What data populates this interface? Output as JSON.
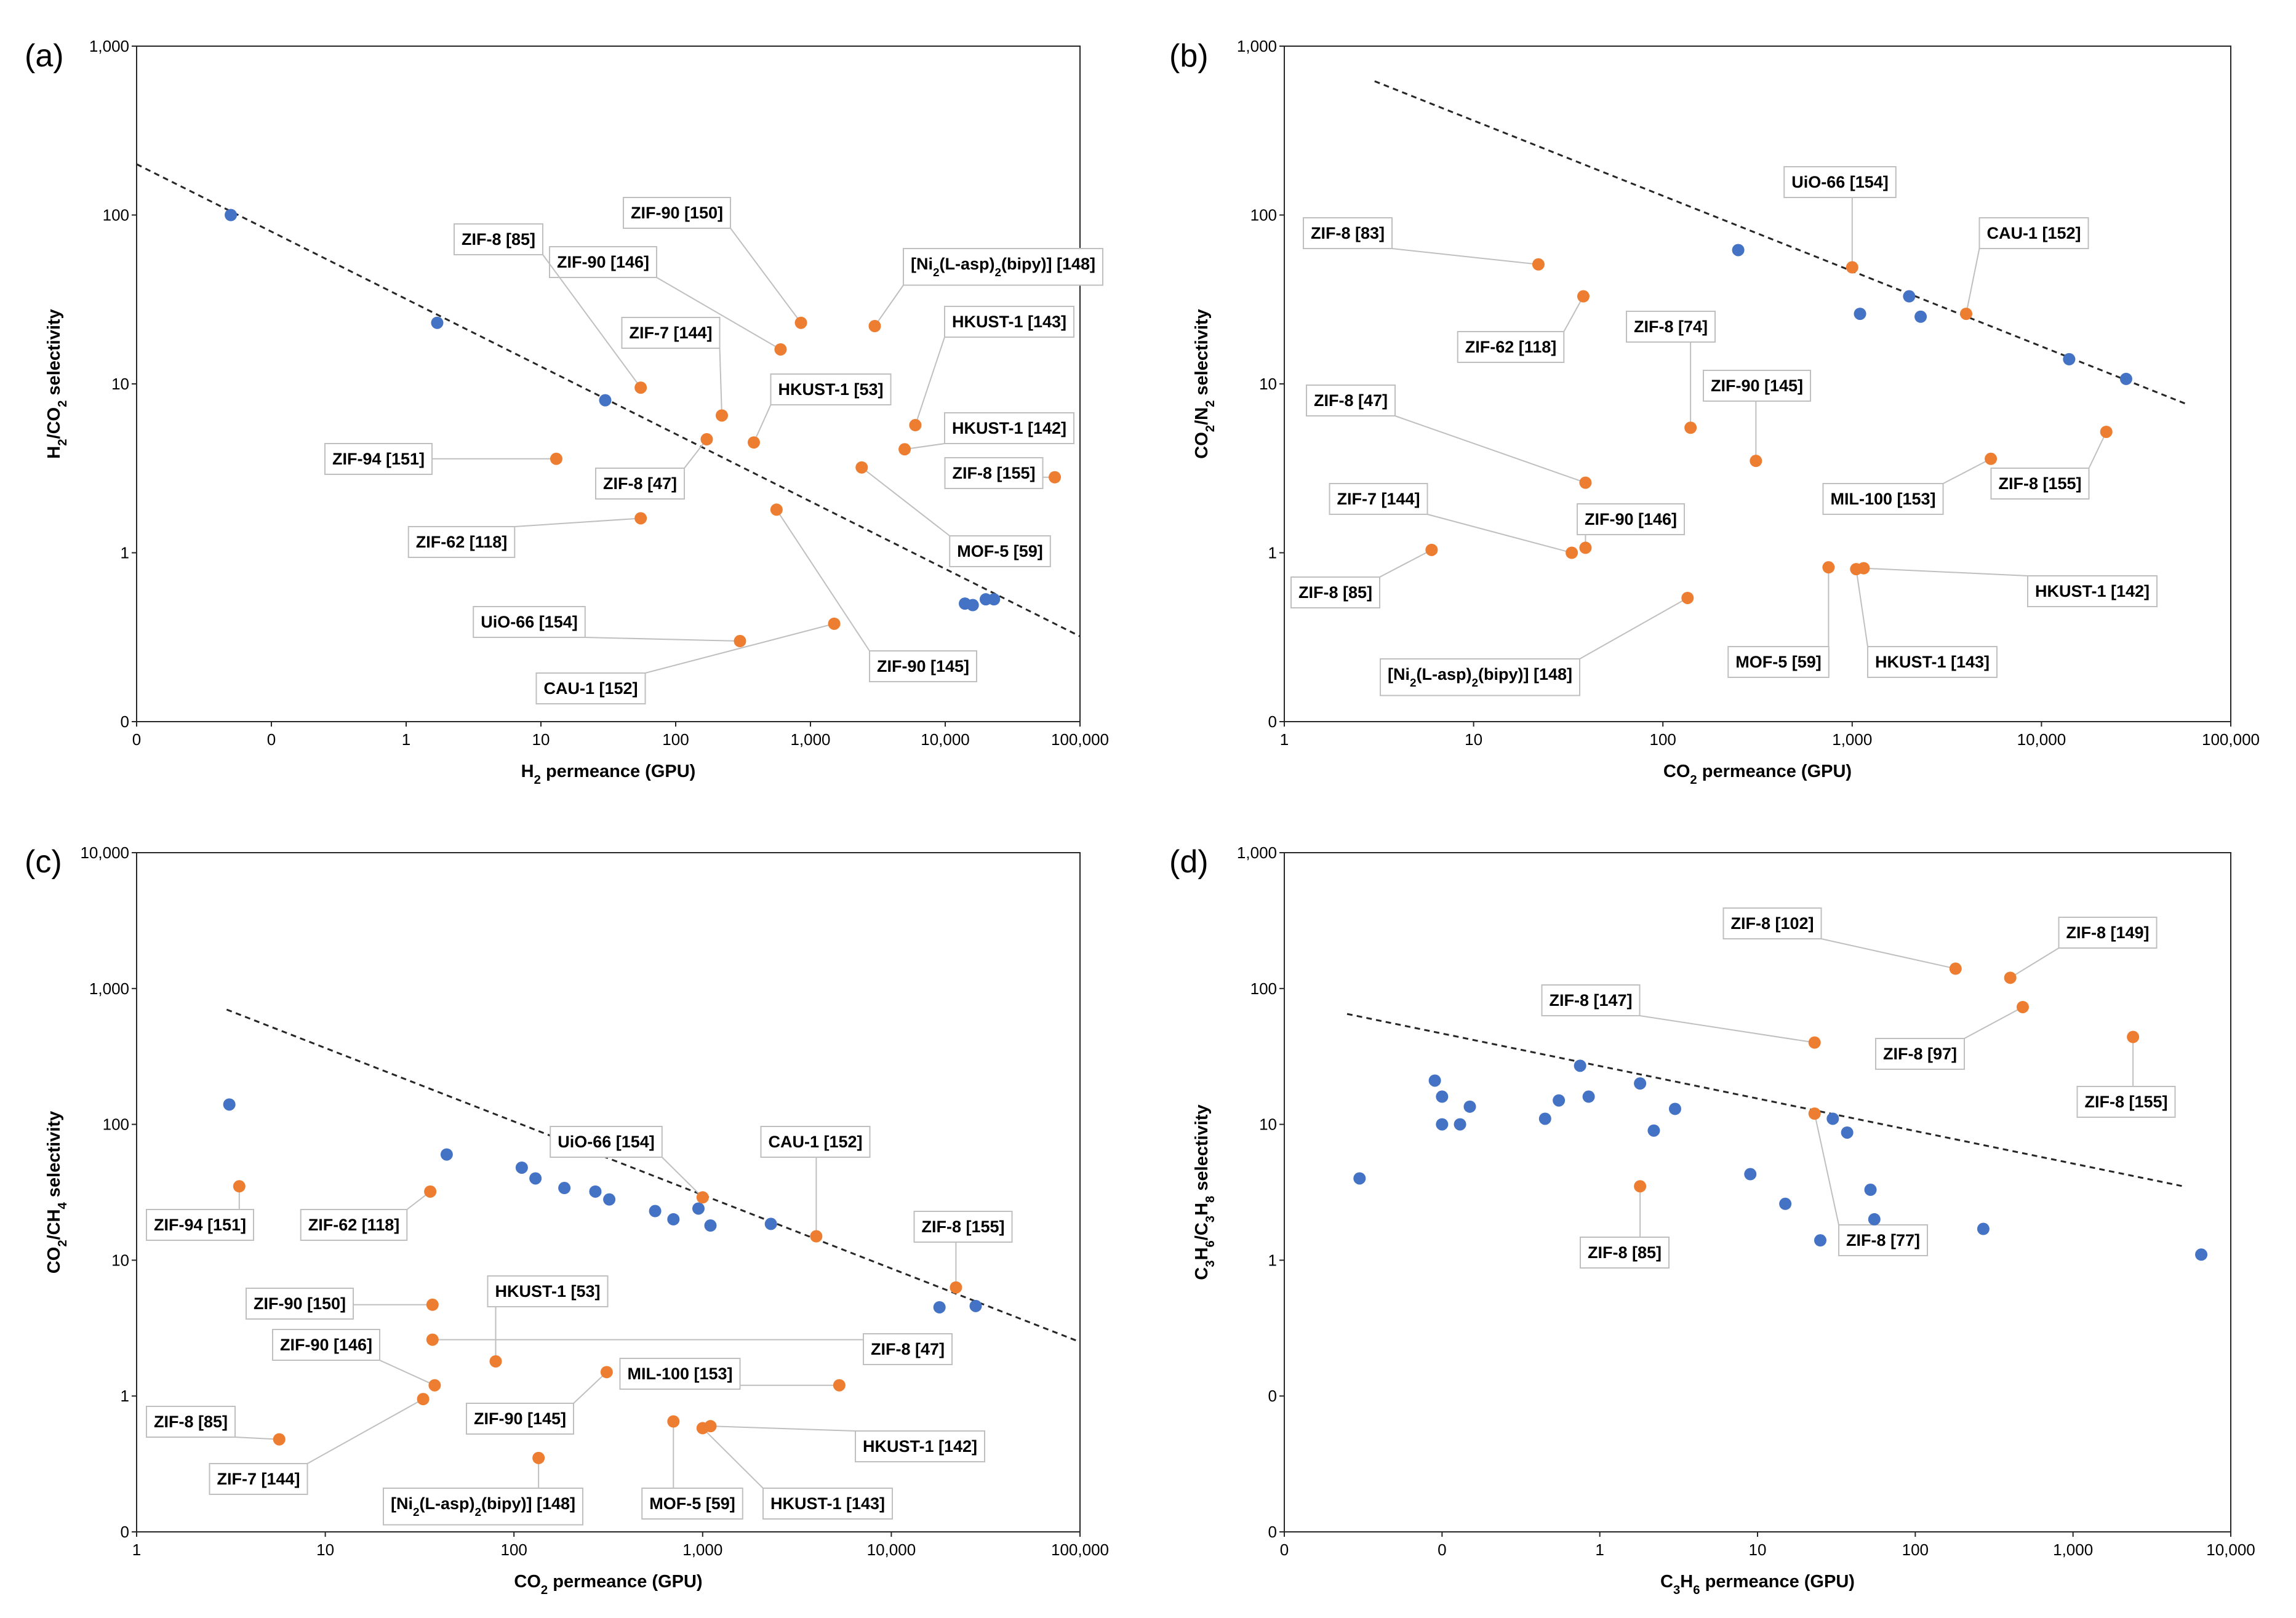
{
  "colors": {
    "blue": "#4472C4",
    "orange": "#ED7D31",
    "axis": "#262626",
    "leader": "#BFBFBF"
  },
  "chart_data": [
    {
      "panel": "(a)",
      "type": "scatter",
      "xlabel_main": "H",
      "xlabel_sub": "2",
      "xlabel_tail": " permeance (GPU)",
      "ylabel_main": "H",
      "ylabel_sub": "2",
      "ylabel_mid": "/CO",
      "ylabel_sub2": "2",
      "ylabel_tail": " selectivity",
      "xscale": "log",
      "xlim": [
        0.01,
        100000
      ],
      "x_ticks": [
        0.01,
        0.1,
        1,
        10,
        100,
        1000,
        10000,
        100000
      ],
      "x_tick_labels": [
        "0",
        "0",
        "1",
        "10",
        "100",
        "1,000",
        "10,000",
        "100,000"
      ],
      "yscale": "log",
      "ylim": [
        0.1,
        1000
      ],
      "y_ticks": [
        0.1,
        1,
        10,
        100,
        1000
      ],
      "y_tick_labels": [
        "0",
        "1",
        "10",
        "100",
        "1,000"
      ],
      "trendline": [
        [
          0.01,
          200
        ],
        [
          100000,
          0.32
        ]
      ],
      "series": [
        {
          "name": "blue",
          "color": "blue",
          "points": [
            [
              0.05,
              100
            ],
            [
              1.7,
              23
            ],
            [
              30,
              8
            ],
            [
              14000,
              0.5
            ],
            [
              16000,
              0.49
            ],
            [
              20000,
              0.53
            ],
            [
              23000,
              0.53
            ]
          ]
        },
        {
          "name": "orange",
          "color": "orange",
          "points": [
            [
              850,
              23
            ],
            [
              3000,
              22
            ],
            [
              600,
              16
            ],
            [
              55,
              9.5
            ],
            [
              220,
              6.5
            ],
            [
              6000,
              5.7
            ],
            [
              5000,
              4.1
            ],
            [
              380,
              4.5
            ],
            [
              170,
              4.7
            ],
            [
              13,
              3.6
            ],
            [
              2400,
              3.2
            ],
            [
              65000,
              2.8
            ],
            [
              55,
              1.6
            ],
            [
              560,
              1.8
            ],
            [
              1500,
              0.38
            ],
            [
              300,
              0.3
            ]
          ]
        }
      ],
      "annotations": [
        {
          "text": "ZIF-90 [150]",
          "target": [
            850,
            23
          ]
        },
        {
          "text": "ZIF-90 [146]",
          "target": [
            600,
            16
          ]
        },
        {
          "text": "ZIF-8 [85]",
          "target": [
            55,
            9.5
          ]
        },
        {
          "text": "ZIF-7 [144]",
          "target": [
            220,
            6.5
          ]
        },
        {
          "pre": "[Ni",
          "sub": "2",
          "post": "(L-asp)",
          "sub2": "2",
          "post2": "(bipy)] [148]",
          "target": [
            3000,
            22
          ]
        },
        {
          "text": "HKUST-1 [143]",
          "target": [
            6000,
            5.7
          ]
        },
        {
          "text": "HKUST-1 [53]",
          "target": [
            380,
            4.5
          ]
        },
        {
          "text": "HKUST-1 [142]",
          "target": [
            5000,
            4.1
          ]
        },
        {
          "text": "ZIF-94 [151]",
          "target": [
            13,
            3.6
          ]
        },
        {
          "text": "ZIF-8 [47]",
          "target": [
            170,
            4.7
          ]
        },
        {
          "text": "ZIF-8 [155]",
          "target": [
            65000,
            2.8
          ]
        },
        {
          "text": "ZIF-62 [118]",
          "target": [
            55,
            1.6
          ]
        },
        {
          "text": "MOF-5 [59]",
          "target": [
            2400,
            3.2
          ]
        },
        {
          "text": "UiO-66 [154]",
          "target": [
            300,
            0.3
          ]
        },
        {
          "text": "CAU-1 [152]",
          "target": [
            1500,
            0.38
          ]
        },
        {
          "text": "ZIF-90 [145]",
          "target": [
            560,
            1.8
          ]
        }
      ]
    },
    {
      "panel": "(b)",
      "type": "scatter",
      "xlabel_main": "CO",
      "xlabel_sub": "2",
      "xlabel_tail": " permeance (GPU)",
      "ylabel_main": "CO",
      "ylabel_sub": "2",
      "ylabel_mid": "/N",
      "ylabel_sub2": "2",
      "ylabel_tail": " selectivity",
      "xscale": "log",
      "xlim": [
        1,
        100000
      ],
      "x_ticks": [
        1,
        10,
        100,
        1000,
        10000,
        100000
      ],
      "x_tick_labels": [
        "1",
        "10",
        "100",
        "1,000",
        "10,000",
        "100,000"
      ],
      "yscale": "log",
      "ylim": [
        0.1,
        1000
      ],
      "y_ticks": [
        0.1,
        1,
        10,
        100,
        1000
      ],
      "y_tick_labels": [
        "0",
        "1",
        "10",
        "100",
        "1,000"
      ],
      "trendline": [
        [
          3,
          620
        ],
        [
          60000,
          7.5
        ]
      ],
      "series": [
        {
          "name": "blue",
          "color": "blue",
          "points": [
            [
              250,
              62
            ],
            [
              1100,
              26
            ],
            [
              2000,
              33
            ],
            [
              2300,
              25
            ],
            [
              14000,
              14
            ],
            [
              28000,
              10.7
            ]
          ]
        },
        {
          "name": "orange",
          "color": "orange",
          "points": [
            [
              22,
              51
            ],
            [
              38,
              33
            ],
            [
              1000,
              49
            ],
            [
              4000,
              26
            ],
            [
              140,
              5.5
            ],
            [
              310,
              3.5
            ],
            [
              39,
              2.6
            ],
            [
              5400,
              3.6
            ],
            [
              22000,
              5.2
            ],
            [
              33,
              1
            ],
            [
              39,
              1.07
            ],
            [
              6,
              1.04
            ],
            [
              135,
              0.54
            ],
            [
              750,
              0.82
            ],
            [
              1050,
              0.8
            ],
            [
              1150,
              0.81
            ]
          ]
        }
      ],
      "annotations": [
        {
          "text": "ZIF-8 [83]",
          "target": [
            22,
            51
          ]
        },
        {
          "text": "UiO-66 [154]",
          "target": [
            1000,
            49
          ]
        },
        {
          "text": "CAU-1 [152]",
          "target": [
            4000,
            26
          ]
        },
        {
          "text": "ZIF-62 [118]",
          "target": [
            38,
            33
          ]
        },
        {
          "text": "ZIF-8 [74]",
          "target": [
            140,
            5.5
          ]
        },
        {
          "text": "ZIF-90 [145]",
          "target": [
            310,
            3.5
          ]
        },
        {
          "text": "ZIF-8 [47]",
          "target": [
            39,
            2.6
          ]
        },
        {
          "text": "ZIF-7 [144]",
          "target": [
            33,
            1
          ]
        },
        {
          "text": "ZIF-90 [146]",
          "target": [
            39,
            1.07
          ]
        },
        {
          "text": "MIL-100 [153]",
          "target": [
            5400,
            3.6
          ]
        },
        {
          "text": "ZIF-8 [155]",
          "target": [
            22000,
            5.2
          ]
        },
        {
          "text": "ZIF-8 [85]",
          "target": [
            6,
            1.04
          ]
        },
        {
          "text": "HKUST-1 [142]",
          "target": [
            1150,
            0.81
          ]
        },
        {
          "pre": "[Ni",
          "sub": "2",
          "post": "(L-asp)",
          "sub2": "2",
          "post2": "(bipy)] [148]",
          "target": [
            135,
            0.54
          ]
        },
        {
          "text": "MOF-5 [59]",
          "target": [
            750,
            0.82
          ]
        },
        {
          "text": "HKUST-1 [143]",
          "target": [
            1050,
            0.8
          ]
        }
      ]
    },
    {
      "panel": "(c)",
      "type": "scatter",
      "xlabel_main": "CO",
      "xlabel_sub": "2",
      "xlabel_tail": " permeance (GPU)",
      "ylabel_main": "CO",
      "ylabel_sub": "2",
      "ylabel_mid": "/CH",
      "ylabel_sub2": "4",
      "ylabel_tail": " selectivity",
      "xscale": "log",
      "xlim": [
        1,
        100000
      ],
      "x_ticks": [
        1,
        10,
        100,
        1000,
        10000,
        100000
      ],
      "x_tick_labels": [
        "1",
        "10",
        "100",
        "1,000",
        "10,000",
        "100,000"
      ],
      "yscale": "log",
      "ylim": [
        0.1,
        10000
      ],
      "y_ticks": [
        0.1,
        1,
        10,
        100,
        1000,
        10000
      ],
      "y_tick_labels": [
        "0",
        "1",
        "10",
        "100",
        "1,000",
        "10,000"
      ],
      "trendline": [
        [
          3,
          700
        ],
        [
          100000,
          2.5
        ]
      ],
      "series": [
        {
          "name": "blue",
          "color": "blue",
          "points": [
            [
              3.1,
              140
            ],
            [
              44,
              60
            ],
            [
              110,
              48
            ],
            [
              130,
              40
            ],
            [
              185,
              34
            ],
            [
              270,
              32
            ],
            [
              320,
              28
            ],
            [
              560,
              23
            ],
            [
              700,
              20
            ],
            [
              950,
              24
            ],
            [
              1100,
              18
            ],
            [
              2300,
              18.5
            ],
            [
              18000,
              4.5
            ],
            [
              28000,
              4.6
            ]
          ]
        },
        {
          "name": "orange",
          "color": "orange",
          "points": [
            [
              3.5,
              35
            ],
            [
              36,
              32
            ],
            [
              1000,
              29
            ],
            [
              4000,
              15
            ],
            [
              22000,
              6.3
            ],
            [
              37,
              4.7
            ],
            [
              37,
              2.6
            ],
            [
              80,
              1.8
            ],
            [
              310,
              1.5
            ],
            [
              38,
              1.2
            ],
            [
              33,
              0.95
            ],
            [
              5.7,
              0.48
            ],
            [
              5300,
              1.2
            ],
            [
              700,
              0.65
            ],
            [
              1000,
              0.58
            ],
            [
              1100,
              0.6
            ],
            [
              135,
              0.35
            ]
          ]
        }
      ],
      "annotations": [
        {
          "text": "UiO-66 [154]",
          "target": [
            1000,
            29
          ]
        },
        {
          "text": "CAU-1 [152]",
          "target": [
            4000,
            15
          ]
        },
        {
          "text": "ZIF-8 [155]",
          "target": [
            22000,
            6.3
          ]
        },
        {
          "text": "ZIF-94 [151]",
          "target": [
            3.5,
            35
          ]
        },
        {
          "text": "ZIF-62 [118]",
          "target": [
            36,
            32
          ]
        },
        {
          "text": "ZIF-90 [150]",
          "target": [
            37,
            4.7
          ]
        },
        {
          "text": "HKUST-1 [53]",
          "target": [
            80,
            1.8
          ]
        },
        {
          "text": "ZIF-8 [47]",
          "target": [
            37,
            2.6
          ]
        },
        {
          "text": "MIL-100 [153]",
          "target": [
            5300,
            1.2
          ]
        },
        {
          "text": "ZIF-90 [145]",
          "target": [
            310,
            1.5
          ]
        },
        {
          "text": "ZIF-90 [146]",
          "target": [
            38,
            1.2
          ]
        },
        {
          "text": "ZIF-8 [85]",
          "target": [
            5.7,
            0.48
          ]
        },
        {
          "text": "HKUST-1 [142]",
          "target": [
            1100,
            0.6
          ]
        },
        {
          "text": "ZIF-7 [144]",
          "target": [
            33,
            0.95
          ]
        },
        {
          "pre": "[Ni",
          "sub": "2",
          "post": "(L-asp)",
          "sub2": "2",
          "post2": "(bipy)] [148]",
          "target": [
            135,
            0.35
          ]
        },
        {
          "text": "MOF-5 [59]",
          "target": [
            700,
            0.65
          ]
        },
        {
          "text": "HKUST-1 [143]",
          "target": [
            1000,
            0.58
          ]
        }
      ]
    },
    {
      "panel": "(d)",
      "type": "scatter",
      "xlabel_main": "C",
      "xlabel_sub": "3",
      "xlabel_mid": "H",
      "xlabel_sub2": "6",
      "xlabel_tail": " permeance (GPU)",
      "ylabel_main": "C",
      "ylabel_sub": "3",
      "ylabel_mid": "H",
      "ylabel_sub2": "6",
      "ylabel_mid2": "/C",
      "ylabel_sub3": "3",
      "ylabel_mid3": "H",
      "ylabel_sub4": "8",
      "ylabel_tail": " selectivity",
      "xscale": "log",
      "xlim": [
        0.01,
        10000
      ],
      "x_ticks": [
        0.01,
        0.1,
        1,
        10,
        100,
        1000,
        10000
      ],
      "x_tick_labels": [
        "0",
        "0",
        "1",
        "10",
        "100",
        "1,000",
        "10,000"
      ],
      "yscale": "log",
      "ylim": [
        0.01,
        1000
      ],
      "y_ticks": [
        0.01,
        0.1,
        1,
        10,
        100,
        1000
      ],
      "y_tick_labels": [
        "0",
        "0",
        "1",
        "10",
        "100",
        "1,000"
      ],
      "trendline": [
        [
          0.025,
          65
        ],
        [
          5000,
          3.5
        ]
      ],
      "series": [
        {
          "name": "blue",
          "color": "blue",
          "points": [
            [
              0.03,
              4
            ],
            [
              0.09,
              21
            ],
            [
              0.1,
              16
            ],
            [
              0.1,
              10
            ],
            [
              0.13,
              10
            ],
            [
              0.15,
              13.5
            ],
            [
              0.45,
              11
            ],
            [
              0.55,
              15
            ],
            [
              0.75,
              27
            ],
            [
              0.85,
              16
            ],
            [
              1.8,
              20
            ],
            [
              2.2,
              9
            ],
            [
              3,
              13
            ],
            [
              9,
              4.3
            ],
            [
              15,
              2.6
            ],
            [
              25,
              1.4
            ],
            [
              30,
              11
            ],
            [
              37,
              8.7
            ],
            [
              52,
              3.3
            ],
            [
              55,
              2
            ],
            [
              270,
              1.7
            ],
            [
              6500,
              1.1
            ]
          ]
        },
        {
          "name": "orange",
          "color": "orange",
          "points": [
            [
              180,
              140
            ],
            [
              400,
              120
            ],
            [
              480,
              73
            ],
            [
              23,
              40
            ],
            [
              2400,
              44
            ],
            [
              23,
              12
            ],
            [
              1.8,
              3.5
            ]
          ]
        }
      ],
      "annotations": [
        {
          "text": "ZIF-8 [102]",
          "target": [
            180,
            140
          ]
        },
        {
          "text": "ZIF-8 [149]",
          "target": [
            400,
            120
          ]
        },
        {
          "text": "ZIF-8 [147]",
          "target": [
            23,
            40
          ]
        },
        {
          "text": "ZIF-8 [97]",
          "target": [
            480,
            73
          ]
        },
        {
          "text": "ZIF-8 [155]",
          "target": [
            2400,
            44
          ]
        },
        {
          "text": "ZIF-8 [85]",
          "target": [
            1.8,
            3.5
          ]
        },
        {
          "text": "ZIF-8 [77]",
          "target": [
            23,
            12
          ]
        }
      ]
    }
  ]
}
